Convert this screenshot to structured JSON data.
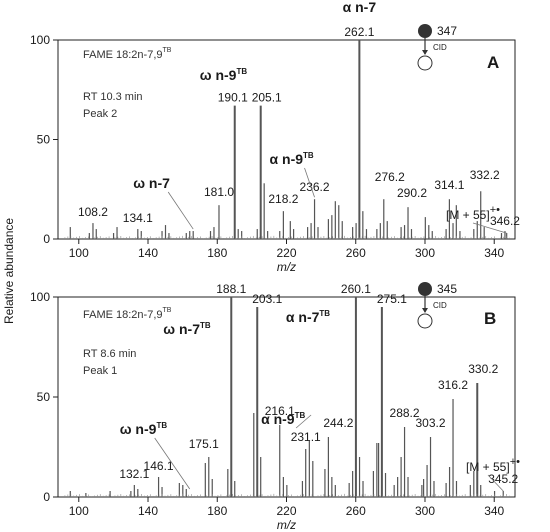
{
  "colors": {
    "peak": "#555555",
    "frame": "#222222"
  },
  "ylabel": "Relative abundance",
  "chart_data": [
    {
      "type": "bar",
      "panel": "A",
      "xlabel": "m/z",
      "ylabel": "Relative abundance",
      "xlim": [
        88,
        352
      ],
      "ylim": [
        0,
        100
      ],
      "xticks": [
        100,
        140,
        180,
        220,
        260,
        300,
        340
      ],
      "yticks": [
        0,
        50,
        100
      ],
      "info": [
        "FAME 18:2n-7,9",
        "RT 10.3 min",
        "Peak 2"
      ],
      "info_sup": "TB",
      "precursor": {
        "mz": "347",
        "cid": "CID"
      },
      "fragment_labels": [
        {
          "base": "α n-7",
          "sup": "",
          "x": 262.1,
          "y": 100
        },
        {
          "base": "ω n-9",
          "sup": "TB",
          "x": 190.1,
          "y": 67
        },
        {
          "base": "α n-9",
          "sup": "TB",
          "x": 236.2,
          "y": 20
        },
        {
          "base": "ω n-7",
          "sup": "",
          "x": 166.1,
          "y": 4
        }
      ],
      "adduct": {
        "text": "[M + 55]",
        "sup": "+•",
        "x": 347,
        "y": 3
      },
      "peaks": [
        {
          "x": 262.1,
          "y": 100,
          "label": "262.1"
        },
        {
          "x": 190.1,
          "y": 67,
          "label": "190.1"
        },
        {
          "x": 205.1,
          "y": 67,
          "label": "205.1"
        },
        {
          "x": 181.0,
          "y": 17,
          "label": "181.0"
        },
        {
          "x": 218.2,
          "y": 14,
          "label": "218.2"
        },
        {
          "x": 236.2,
          "y": 20,
          "label": "236.2"
        },
        {
          "x": 276.2,
          "y": 20,
          "label": "276.2"
        },
        {
          "x": 290.2,
          "y": 16,
          "label": "290.2"
        },
        {
          "x": 314.1,
          "y": 20,
          "label": "314.1"
        },
        {
          "x": 332.2,
          "y": 24,
          "label": "332.2"
        },
        {
          "x": 346.2,
          "y": 4,
          "label": "346.2"
        },
        {
          "x": 108.2,
          "y": 8,
          "label": "108.2"
        },
        {
          "x": 134.1,
          "y": 5,
          "label": "134.1"
        },
        {
          "x": 207.1,
          "y": 28
        },
        {
          "x": 248.2,
          "y": 19
        },
        {
          "x": 250.2,
          "y": 17
        },
        {
          "x": 264.1,
          "y": 14
        },
        {
          "x": 318.1,
          "y": 17
        },
        {
          "x": 300.2,
          "y": 11
        },
        {
          "x": 278.2,
          "y": 9
        },
        {
          "x": 222.2,
          "y": 9
        },
        {
          "x": 150.1,
          "y": 7
        },
        {
          "x": 122.1,
          "y": 6
        },
        {
          "x": 95.1,
          "y": 6
        },
        {
          "x": 106.1,
          "y": 3
        },
        {
          "x": 110.1,
          "y": 5
        },
        {
          "x": 120.1,
          "y": 3
        },
        {
          "x": 136.1,
          "y": 4
        },
        {
          "x": 148.1,
          "y": 4
        },
        {
          "x": 152.1,
          "y": 3
        },
        {
          "x": 162.1,
          "y": 3
        },
        {
          "x": 164.1,
          "y": 4
        },
        {
          "x": 166.1,
          "y": 4
        },
        {
          "x": 176.1,
          "y": 4
        },
        {
          "x": 178.1,
          "y": 6
        },
        {
          "x": 192.1,
          "y": 5
        },
        {
          "x": 194.1,
          "y": 4
        },
        {
          "x": 203.1,
          "y": 5
        },
        {
          "x": 209.1,
          "y": 4
        },
        {
          "x": 216.1,
          "y": 4
        },
        {
          "x": 224.1,
          "y": 5
        },
        {
          "x": 232.2,
          "y": 6
        },
        {
          "x": 234.2,
          "y": 8
        },
        {
          "x": 238.2,
          "y": 6
        },
        {
          "x": 244.2,
          "y": 10
        },
        {
          "x": 246.2,
          "y": 12
        },
        {
          "x": 252.2,
          "y": 9
        },
        {
          "x": 258.2,
          "y": 6
        },
        {
          "x": 260.2,
          "y": 8
        },
        {
          "x": 266.2,
          "y": 5
        },
        {
          "x": 272.2,
          "y": 5
        },
        {
          "x": 274.2,
          "y": 8
        },
        {
          "x": 286.2,
          "y": 6
        },
        {
          "x": 288.2,
          "y": 7
        },
        {
          "x": 292.2,
          "y": 5
        },
        {
          "x": 302.2,
          "y": 7
        },
        {
          "x": 304.2,
          "y": 4
        },
        {
          "x": 312.2,
          "y": 5
        },
        {
          "x": 316.2,
          "y": 8
        },
        {
          "x": 320.2,
          "y": 4
        },
        {
          "x": 328.2,
          "y": 5
        },
        {
          "x": 330.2,
          "y": 9
        },
        {
          "x": 334.2,
          "y": 6
        },
        {
          "x": 344.2,
          "y": 3
        },
        {
          "x": 347.2,
          "y": 3
        }
      ]
    },
    {
      "type": "bar",
      "panel": "B",
      "xlabel": "m/z",
      "ylabel": "Relative abundance",
      "xlim": [
        88,
        352
      ],
      "ylim": [
        0,
        100
      ],
      "xticks": [
        100,
        140,
        180,
        220,
        260,
        300,
        340
      ],
      "yticks": [
        0,
        50,
        100
      ],
      "info": [
        "FAME 18:2n-7,9",
        "RT 8.6 min",
        "Peak 1"
      ],
      "info_sup": "TB",
      "precursor": {
        "mz": "345",
        "cid": "CID"
      },
      "fragment_labels": [
        {
          "base": "ω n-7",
          "sup": "TB",
          "x": 188.1,
          "y": 100
        },
        {
          "base": "α n-7",
          "sup": "TB",
          "x": 260.1,
          "y": 100
        },
        {
          "base": "α n-9",
          "sup": "TB",
          "x": 234.2,
          "y": 40
        },
        {
          "base": "ω n-9",
          "sup": "TB",
          "x": 164.1,
          "y": 3
        }
      ],
      "adduct": {
        "text": "[M + 55]",
        "sup": "+•",
        "x": 345.2,
        "y": 3
      },
      "peaks": [
        {
          "x": 188.1,
          "y": 100,
          "label": "188.1"
        },
        {
          "x": 203.1,
          "y": 95,
          "label": "203.1"
        },
        {
          "x": 260.1,
          "y": 100,
          "label": "260.1"
        },
        {
          "x": 275.1,
          "y": 95,
          "label": "275.1"
        },
        {
          "x": 175.1,
          "y": 20,
          "label": "175.1"
        },
        {
          "x": 216.1,
          "y": 36,
          "label": "216.1"
        },
        {
          "x": 231.1,
          "y": 24,
          "label": "231.1"
        },
        {
          "x": 244.2,
          "y": 30,
          "label": "244.2"
        },
        {
          "x": 288.2,
          "y": 35,
          "label": "288.2"
        },
        {
          "x": 303.2,
          "y": 30,
          "label": "303.2"
        },
        {
          "x": 316.2,
          "y": 49,
          "label": "316.2"
        },
        {
          "x": 330.2,
          "y": 57,
          "label": "330.2"
        },
        {
          "x": 345.2,
          "y": 3,
          "label": "345.2"
        },
        {
          "x": 132.1,
          "y": 6,
          "label": "132.1"
        },
        {
          "x": 146.1,
          "y": 10,
          "label": "146.1"
        },
        {
          "x": 201.1,
          "y": 42
        },
        {
          "x": 205.1,
          "y": 20
        },
        {
          "x": 233.2,
          "y": 28
        },
        {
          "x": 235.2,
          "y": 18
        },
        {
          "x": 246.2,
          "y": 10
        },
        {
          "x": 258.2,
          "y": 13
        },
        {
          "x": 262.2,
          "y": 20
        },
        {
          "x": 270.2,
          "y": 13
        },
        {
          "x": 272.2,
          "y": 27
        },
        {
          "x": 273.2,
          "y": 27
        },
        {
          "x": 277.2,
          "y": 12
        },
        {
          "x": 286.2,
          "y": 20
        },
        {
          "x": 290.2,
          "y": 10
        },
        {
          "x": 301.2,
          "y": 16
        },
        {
          "x": 305.2,
          "y": 8
        },
        {
          "x": 314.2,
          "y": 15
        },
        {
          "x": 318.2,
          "y": 8
        },
        {
          "x": 328.2,
          "y": 13
        },
        {
          "x": 332.2,
          "y": 6
        },
        {
          "x": 186.1,
          "y": 14
        },
        {
          "x": 190.1,
          "y": 8
        },
        {
          "x": 173.1,
          "y": 17
        },
        {
          "x": 177.1,
          "y": 9
        },
        {
          "x": 160.1,
          "y": 6
        },
        {
          "x": 162.1,
          "y": 4
        },
        {
          "x": 158.1,
          "y": 7
        },
        {
          "x": 148.1,
          "y": 5
        },
        {
          "x": 134.1,
          "y": 4
        },
        {
          "x": 130.1,
          "y": 3
        },
        {
          "x": 118.1,
          "y": 3
        },
        {
          "x": 104.1,
          "y": 2
        },
        {
          "x": 95.1,
          "y": 3
        },
        {
          "x": 218.2,
          "y": 10
        },
        {
          "x": 220.2,
          "y": 6
        },
        {
          "x": 229.2,
          "y": 8
        },
        {
          "x": 242.2,
          "y": 14
        },
        {
          "x": 248.2,
          "y": 6
        },
        {
          "x": 256.2,
          "y": 7
        },
        {
          "x": 264.2,
          "y": 8
        },
        {
          "x": 282.2,
          "y": 6
        },
        {
          "x": 284.2,
          "y": 10
        },
        {
          "x": 298.2,
          "y": 6
        },
        {
          "x": 299.2,
          "y": 9
        },
        {
          "x": 312.2,
          "y": 7
        },
        {
          "x": 326.2,
          "y": 6
        },
        {
          "x": 340.2,
          "y": 3
        }
      ]
    }
  ]
}
